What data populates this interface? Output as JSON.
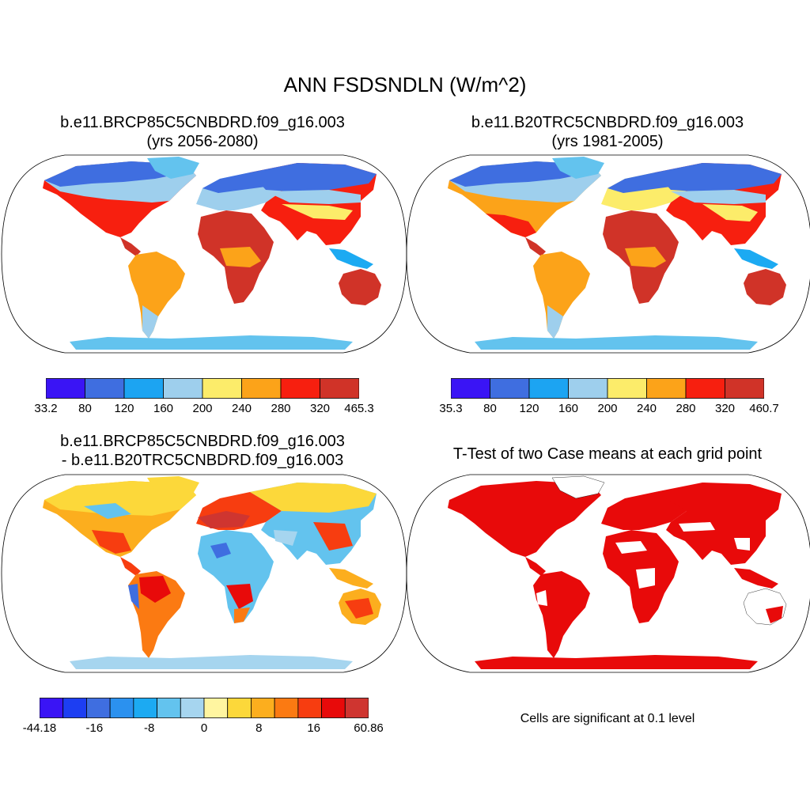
{
  "main_title": "ANN FSDSNDLN (W/m^2)",
  "panels": [
    {
      "id": "top-left",
      "title_line1": "b.e11.BRCP85C5CNBDRD.f09_g16.003",
      "title_line2": "(yrs 2056-2080)",
      "colorbar": {
        "colors": [
          "#3a14f5",
          "#3f6ee0",
          "#1ca4f2",
          "#9ecfed",
          "#fcec6a",
          "#fca319",
          "#f71f0f",
          "#d03328"
        ],
        "labels": [
          "33.2",
          "80",
          "120",
          "160",
          "200",
          "240",
          "280",
          "320",
          "465.3"
        ]
      }
    },
    {
      "id": "top-right",
      "title_line1": "b.e11.B20TRC5CNBDRD.f09_g16.003",
      "title_line2": "(yrs 1981-2005)",
      "colorbar": {
        "colors": [
          "#3a14f5",
          "#3f6ee0",
          "#1ca4f2",
          "#9ecfed",
          "#fcec6a",
          "#fca319",
          "#f71f0f",
          "#d03328"
        ],
        "labels": [
          "35.3",
          "80",
          "120",
          "160",
          "200",
          "240",
          "280",
          "320",
          "460.7"
        ]
      }
    },
    {
      "id": "bottom-left",
      "title_line1": "b.e11.BRCP85C5CNBDRD.f09_g16.003",
      "title_line2": "- b.e11.B20TRC5CNBDRD.f09_g16.003",
      "colorbar": {
        "colors": [
          "#3a14f5",
          "#1d3ef2",
          "#3f6ee0",
          "#2b91ef",
          "#1caaf2",
          "#63c3ee",
          "#a6d5ef",
          "#fff5a0",
          "#fcd83a",
          "#fcae1e",
          "#fb7a12",
          "#f73d10",
          "#e80a0a",
          "#cf3530"
        ],
        "labels": [
          "-44.18",
          "-16",
          "-8",
          "0",
          "8",
          "16",
          "60.86"
        ]
      }
    },
    {
      "id": "bottom-right",
      "title_line1": "T-Test of two Case means at each grid point",
      "note": "Cells are significant at 0.1 level"
    }
  ]
}
